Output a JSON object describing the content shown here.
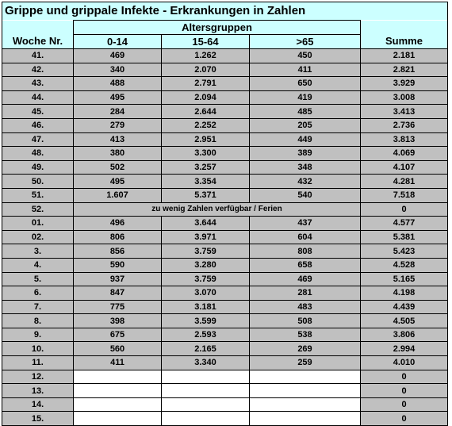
{
  "title": "Grippe und grippale Infekte - Erkrankungen in Zahlen",
  "headers": {
    "group": "Altersgruppen",
    "week": "Woche Nr.",
    "age_0_14": "0-14",
    "age_15_64": "15-64",
    "age_65": ">65",
    "sum": "Summe"
  },
  "rows": [
    {
      "week": "41.",
      "a": "469",
      "b": "1.262",
      "c": "450",
      "sum": "2.181"
    },
    {
      "week": "42.",
      "a": "340",
      "b": "2.070",
      "c": "411",
      "sum": "2.821"
    },
    {
      "week": "43.",
      "a": "488",
      "b": "2.791",
      "c": "650",
      "sum": "3.929"
    },
    {
      "week": "44.",
      "a": "495",
      "b": "2.094",
      "c": "419",
      "sum": "3.008"
    },
    {
      "week": "45.",
      "a": "284",
      "b": "2.644",
      "c": "485",
      "sum": "3.413"
    },
    {
      "week": "46.",
      "a": "279",
      "b": "2.252",
      "c": "205",
      "sum": "2.736"
    },
    {
      "week": "47.",
      "a": "413",
      "b": "2.951",
      "c": "449",
      "sum": "3.813"
    },
    {
      "week": "48.",
      "a": "380",
      "b": "3.300",
      "c": "389",
      "sum": "4.069"
    },
    {
      "week": "49.",
      "a": "502",
      "b": "3.257",
      "c": "348",
      "sum": "4.107"
    },
    {
      "week": "50.",
      "a": "495",
      "b": "3.354",
      "c": "432",
      "sum": "4.281"
    },
    {
      "week": "51.",
      "a": "1.607",
      "b": "5.371",
      "c": "540",
      "sum": "7.518"
    },
    {
      "week": "52.",
      "note": "zu wenig Zahlen verfügbar / Ferien",
      "sum": "0"
    },
    {
      "week": "01.",
      "a": "496",
      "b": "3.644",
      "c": "437",
      "sum": "4.577"
    },
    {
      "week": "02.",
      "a": "806",
      "b": "3.971",
      "c": "604",
      "sum": "5.381"
    },
    {
      "week": "3.",
      "a": "856",
      "b": "3.759",
      "c": "808",
      "sum": "5.423"
    },
    {
      "week": "4.",
      "a": "590",
      "b": "3.280",
      "c": "658",
      "sum": "4.528"
    },
    {
      "week": "5.",
      "a": "937",
      "b": "3.759",
      "c": "469",
      "sum": "5.165"
    },
    {
      "week": "6.",
      "a": "847",
      "b": "3.070",
      "c": "281",
      "sum": "4.198"
    },
    {
      "week": "7.",
      "a": "775",
      "b": "3.181",
      "c": "483",
      "sum": "4.439"
    },
    {
      "week": "8.",
      "a": "398",
      "b": "3.599",
      "c": "508",
      "sum": "4.505"
    },
    {
      "week": "9.",
      "a": "675",
      "b": "2.593",
      "c": "538",
      "sum": "3.806"
    },
    {
      "week": "10.",
      "a": "560",
      "b": "2.165",
      "c": "269",
      "sum": "2.994"
    },
    {
      "week": "11.",
      "a": "411",
      "b": "3.340",
      "c": "259",
      "sum": "4.010"
    },
    {
      "week": "12.",
      "a": "",
      "b": "",
      "c": "",
      "sum": "0"
    },
    {
      "week": "13.",
      "a": "",
      "b": "",
      "c": "",
      "sum": "0"
    },
    {
      "week": "14.",
      "a": "",
      "b": "",
      "c": "",
      "sum": "0"
    },
    {
      "week": "15.",
      "a": "",
      "b": "",
      "c": "",
      "sum": "0"
    }
  ],
  "colors": {
    "header_bg": "#ccffff",
    "row_bg": "#c0c0c0"
  }
}
